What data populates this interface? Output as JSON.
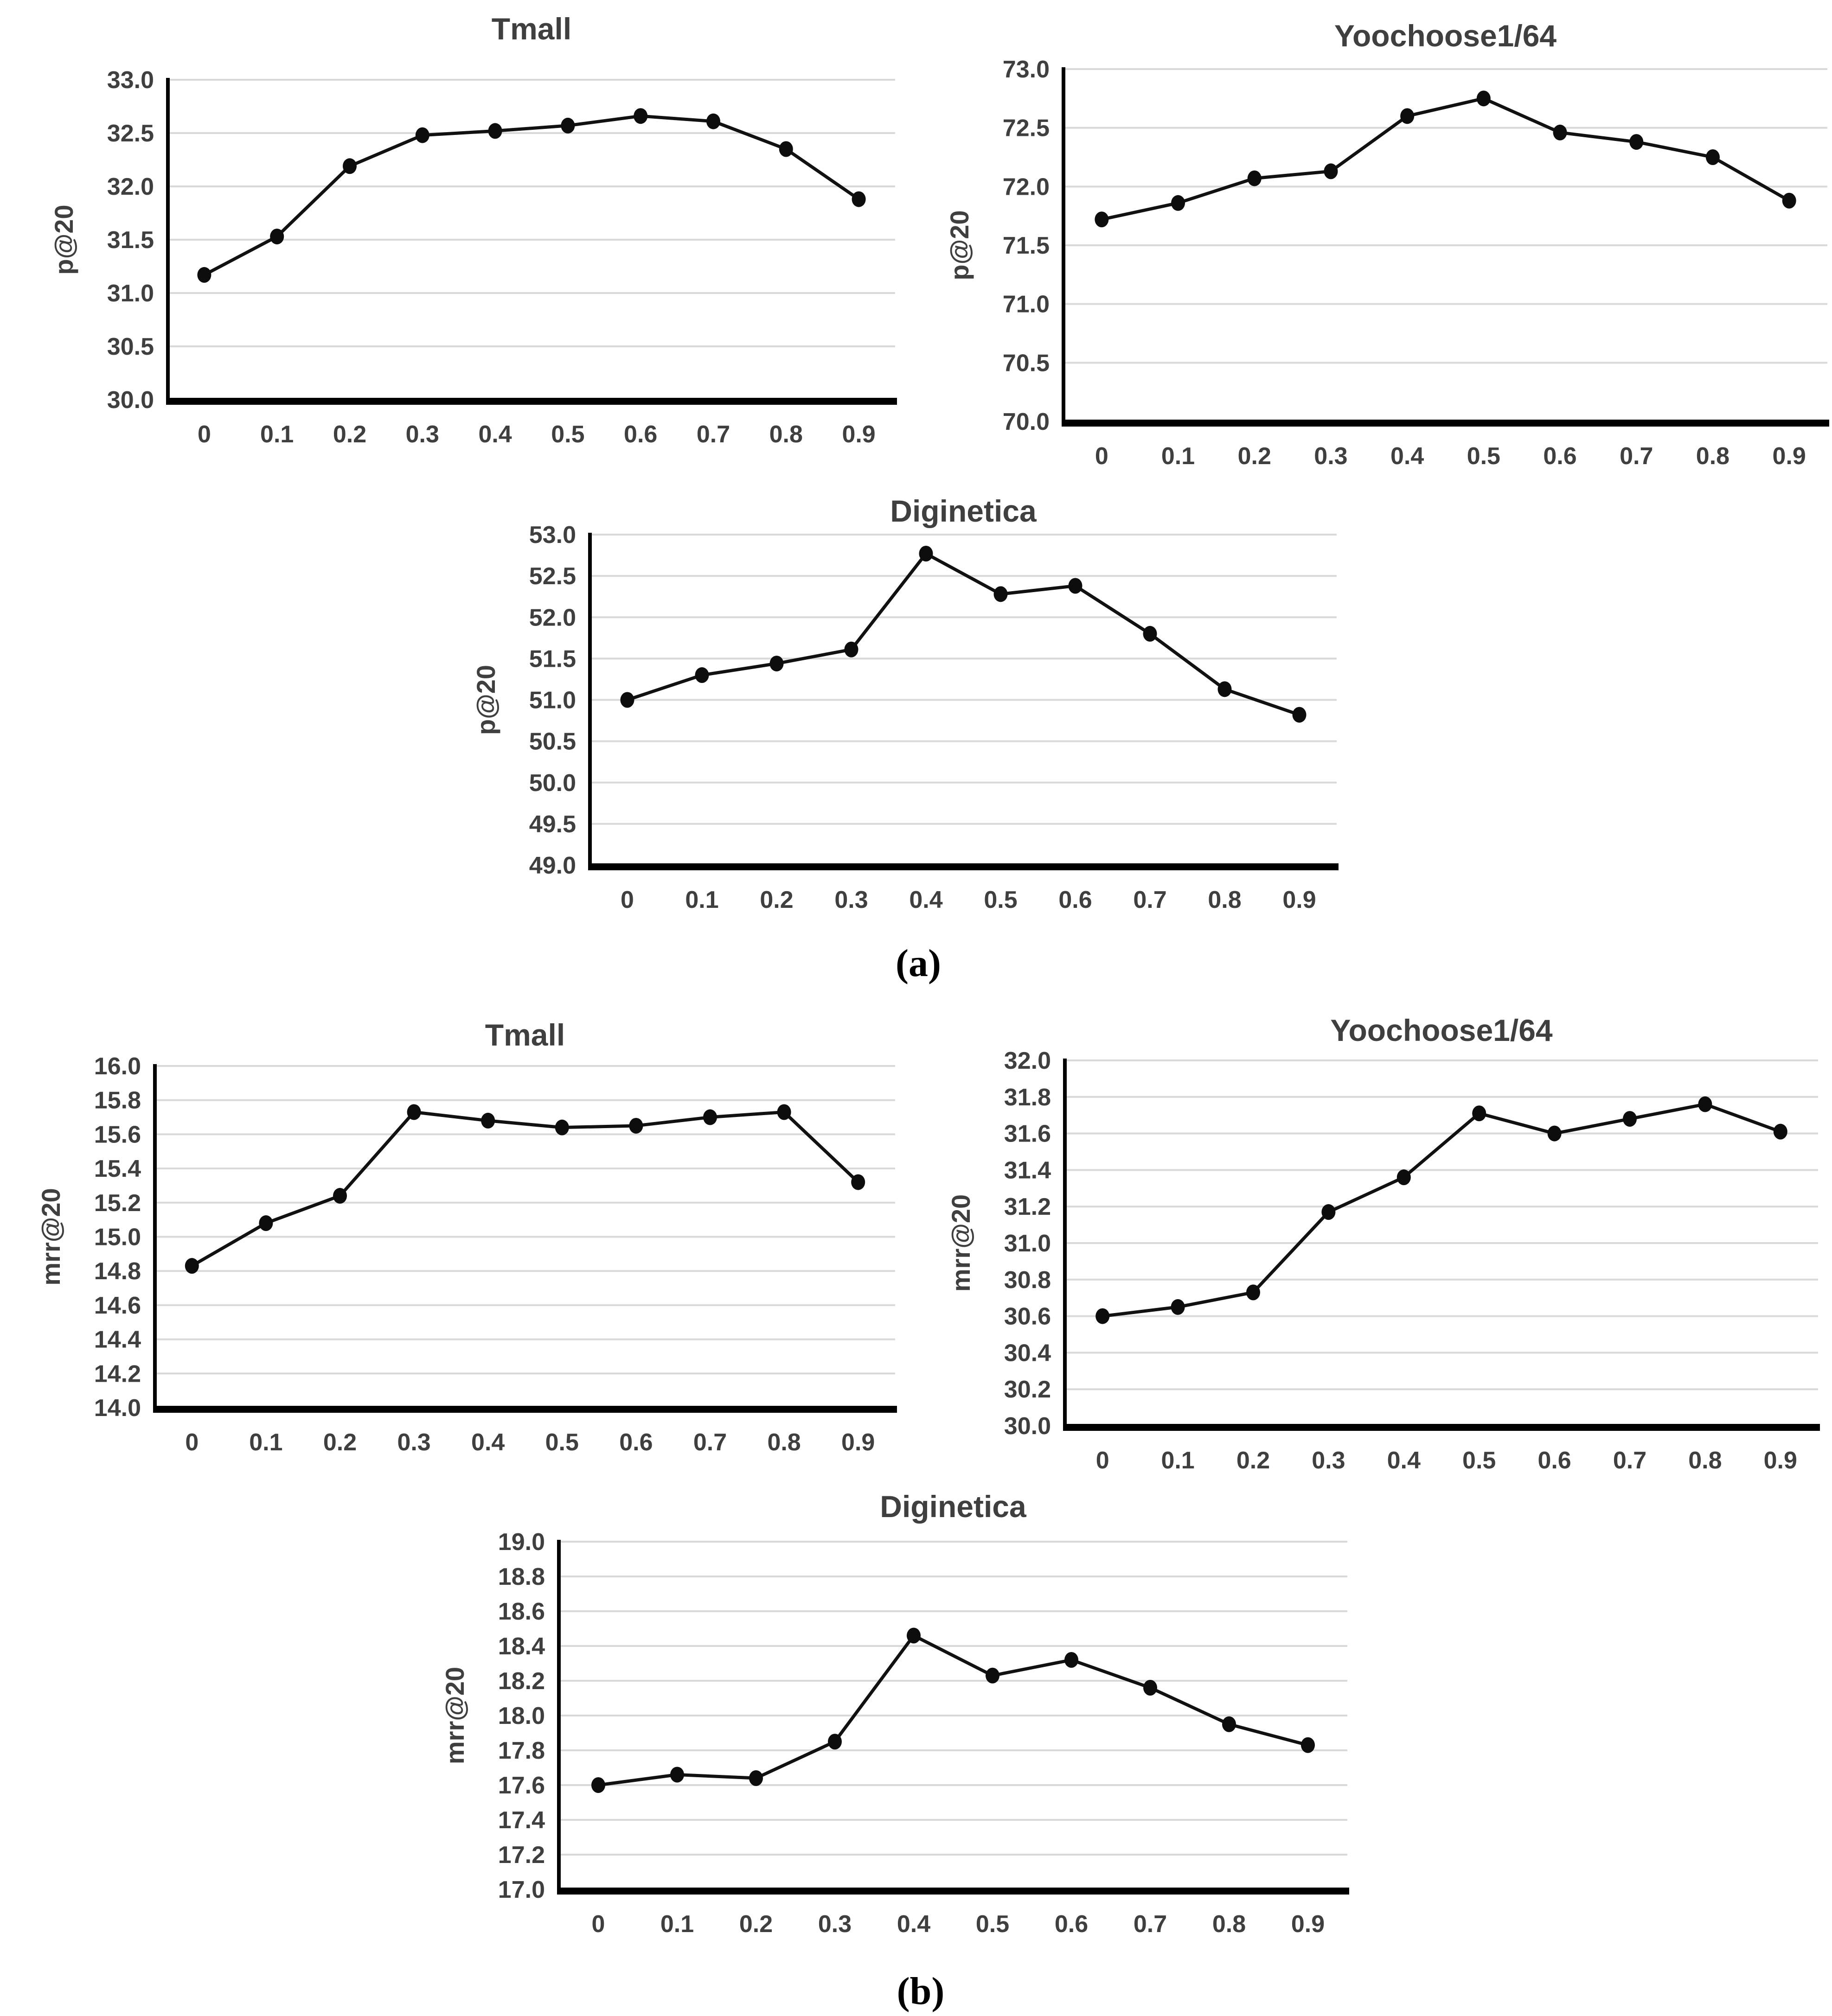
{
  "figure": {
    "panel_a_label": "(a)",
    "panel_b_label": "(b)",
    "colors": {
      "line": "#111111",
      "marker": "#0d0d0d",
      "grid": "#d9d9d9",
      "axis": "#000000",
      "text": "#3f3f3f",
      "background": "#ffffff"
    }
  },
  "chart_data": [
    {
      "id": "tmall-p20",
      "panel": "a",
      "type": "line",
      "title": "Tmall",
      "xlabel": "",
      "ylabel": "p@20",
      "categories": [
        "0",
        "0.1",
        "0.2",
        "0.3",
        "0.4",
        "0.5",
        "0.6",
        "0.7",
        "0.8",
        "0.9"
      ],
      "values": [
        31.17,
        31.53,
        32.19,
        32.48,
        32.52,
        32.57,
        32.66,
        32.61,
        32.35,
        31.88
      ],
      "ylim": [
        30.0,
        33.0
      ],
      "ytick_step": 0.5,
      "grid": true,
      "legend": "none"
    },
    {
      "id": "yoochoose-p20",
      "panel": "a",
      "type": "line",
      "title": "Yoochoose1/64",
      "xlabel": "",
      "ylabel": "p@20",
      "categories": [
        "0",
        "0.1",
        "0.2",
        "0.3",
        "0.4",
        "0.5",
        "0.6",
        "0.7",
        "0.8",
        "0.9"
      ],
      "values": [
        71.72,
        71.86,
        72.07,
        72.13,
        72.6,
        72.75,
        72.46,
        72.38,
        72.25,
        71.88
      ],
      "ylim": [
        70.0,
        73.0
      ],
      "ytick_step": 0.5,
      "grid": true,
      "legend": "none"
    },
    {
      "id": "diginetica-p20",
      "panel": "a",
      "type": "line",
      "title": "Diginetica",
      "xlabel": "",
      "ylabel": "p@20",
      "categories": [
        "0",
        "0.1",
        "0.2",
        "0.3",
        "0.4",
        "0.5",
        "0.6",
        "0.7",
        "0.8",
        "0.9"
      ],
      "values": [
        51.0,
        51.3,
        51.44,
        51.61,
        52.77,
        52.28,
        52.38,
        51.8,
        51.13,
        50.82
      ],
      "ylim": [
        49.0,
        53.0
      ],
      "ytick_step": 0.5,
      "grid": true,
      "legend": "none"
    },
    {
      "id": "tmall-mrr20",
      "panel": "b",
      "type": "line",
      "title": "Tmall",
      "xlabel": "",
      "ylabel": "mrr@20",
      "categories": [
        "0",
        "0.1",
        "0.2",
        "0.3",
        "0.4",
        "0.5",
        "0.6",
        "0.7",
        "0.8",
        "0.9"
      ],
      "values": [
        14.83,
        15.08,
        15.24,
        15.73,
        15.68,
        15.64,
        15.65,
        15.7,
        15.73,
        15.32
      ],
      "ylim": [
        14.0,
        16.0
      ],
      "ytick_step": 0.2,
      "grid": true,
      "legend": "none"
    },
    {
      "id": "yoochoose-mrr20",
      "panel": "b",
      "type": "line",
      "title": "Yoochoose1/64",
      "xlabel": "",
      "ylabel": "mrr@20",
      "categories": [
        "0",
        "0.1",
        "0.2",
        "0.3",
        "0.4",
        "0.5",
        "0.6",
        "0.7",
        "0.8",
        "0.9"
      ],
      "values": [
        30.6,
        30.65,
        30.73,
        31.17,
        31.36,
        31.71,
        31.6,
        31.68,
        31.76,
        31.61
      ],
      "ylim": [
        30.0,
        32.0
      ],
      "ytick_step": 0.2,
      "grid": true,
      "legend": "none"
    },
    {
      "id": "diginetica-mrr20",
      "panel": "b",
      "type": "line",
      "title": "Diginetica",
      "xlabel": "",
      "ylabel": "mrr@20",
      "categories": [
        "0",
        "0.1",
        "0.2",
        "0.3",
        "0.4",
        "0.5",
        "0.6",
        "0.7",
        "0.8",
        "0.9"
      ],
      "values": [
        17.6,
        17.66,
        17.64,
        17.85,
        18.46,
        18.23,
        18.32,
        18.16,
        17.95,
        17.83
      ],
      "ylim": [
        17.0,
        19.0
      ],
      "ytick_step": 0.2,
      "grid": true,
      "legend": "none"
    }
  ]
}
